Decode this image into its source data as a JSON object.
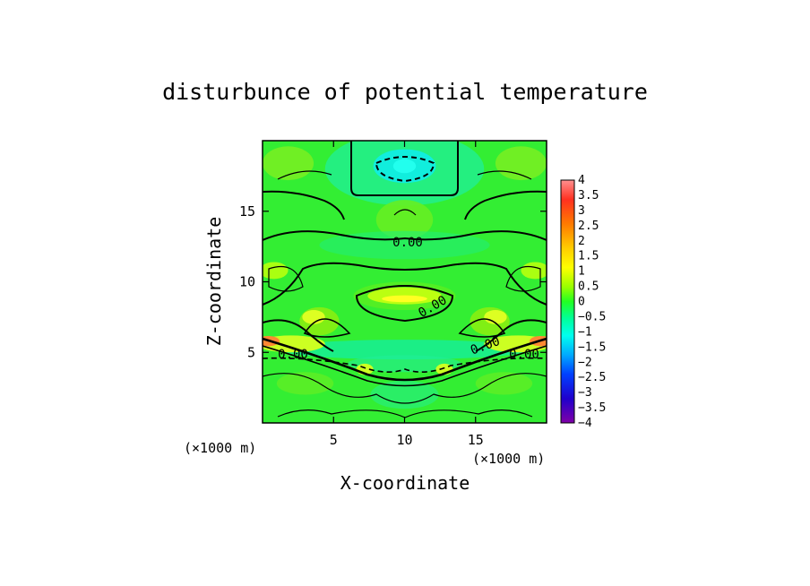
{
  "chart_data": {
    "type": "heatmap",
    "title": "disturbunce of potential temperature",
    "xlabel": "X-coordinate",
    "ylabel": "Z-coordinate",
    "x_unit": "(×1000 m)",
    "y_unit": "(×1000 m)",
    "xlim": [
      0,
      20
    ],
    "ylim": [
      0,
      20
    ],
    "x_ticks": [
      5,
      10,
      15
    ],
    "y_ticks": [
      5,
      10,
      15
    ],
    "contour_label": "0.00",
    "colorbar": {
      "min": -4,
      "max": 4,
      "tick_labels": [
        "4",
        "3.5",
        "3",
        "2.5",
        "2",
        "1.5",
        "1",
        "0.5",
        "0",
        "−0.5",
        "−1",
        "−1.5",
        "−2",
        "−2.5",
        "−3",
        "−3.5",
        "−4"
      ],
      "colors": [
        "#ff8080",
        "#ff2a00",
        "#ff6600",
        "#ff9900",
        "#ffcc00",
        "#ffff00",
        "#ccff00",
        "#66ff00",
        "#00ff22",
        "#00ff88",
        "#00ffcc",
        "#00eeff",
        "#0099ff",
        "#0044ff",
        "#0000dd",
        "#5500bb",
        "#8800aa"
      ]
    },
    "background_color": "#33ee33"
  }
}
